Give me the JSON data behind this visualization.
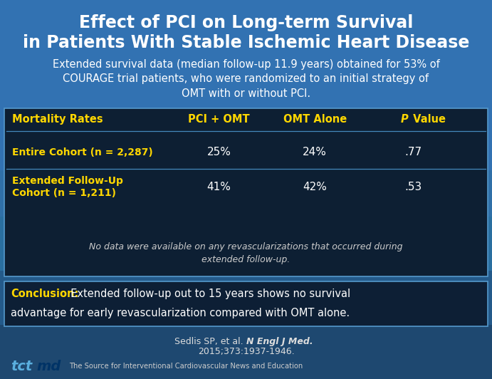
{
  "title_line1": "Effect of PCI on Long-term Survival",
  "title_line2": "in Patients With Stable Ischemic Heart Disease",
  "title_color": "#FFFFFF",
  "title_fontsize": 17,
  "bg_main": "#2a70b8",
  "bg_dark": "#1a3a5c",
  "subtitle_text": "Extended survival data (median follow-up 11.9 years) obtained for 53% of\nCOURAGE trial patients, who were randomized to an initial strategy of\nOMT with or without PCI.",
  "subtitle_color": "#FFFFFF",
  "subtitle_fontsize": 10.5,
  "table_bg": "#0d1f33",
  "table_header_color": "#FFD700",
  "table_data_color": "#FFFFFF",
  "table_col1_label": "Mortality Rates",
  "table_col2_label": "PCI + OMT",
  "table_col3_label": "OMT Alone",
  "table_col4_label_p": "P",
  "table_col4_label_value": " Value",
  "row1_label": "Entire Cohort (n = 2,287)",
  "row1_col2": "25%",
  "row1_col3": "24%",
  "row1_col4": ".77",
  "row2_label_line1": "Extended Follow-Up",
  "row2_label_line2": "Cohort (n = 1,211)",
  "row2_col2": "41%",
  "row2_col3": "42%",
  "row2_col4": ".53",
  "note_text": "No data were available on any revascularizations that occurred during\nextended follow-up.",
  "note_color": "#CCCCCC",
  "conclusion_label": "Conclusion:",
  "conclusion_label_color": "#FFD700",
  "conclusion_rest_line1": "  Extended follow-up out to 15 years shows no survival",
  "conclusion_line2": "advantage for early revascularization compared with OMT alone.",
  "conclusion_text_color": "#FFFFFF",
  "conclusion_bg": "#0d1f35",
  "citation_color": "#DDDDDD",
  "footer_text": "The Source for Interventional Cardiovascular News and Education",
  "footer_color": "#CCCCCC",
  "tct_color": "#5aafdf",
  "md_color": "#003366",
  "divider_color": "#4488bb",
  "border_color": "#5599cc"
}
